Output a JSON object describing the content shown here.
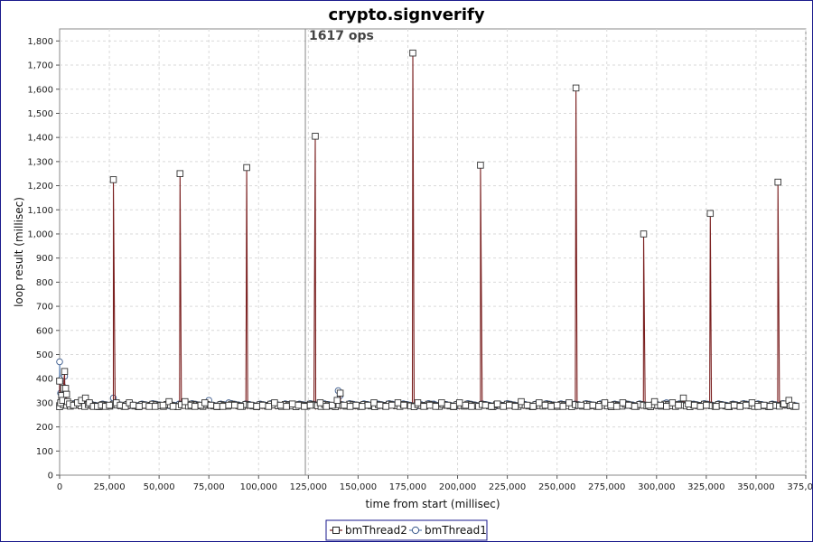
{
  "chart_data": {
    "type": "line",
    "title": "crypto.signverify",
    "xlabel": "time from start (millisec)",
    "ylabel": "loop result (millisec)",
    "xlim": [
      0,
      375000
    ],
    "ylim": [
      0,
      1850
    ],
    "x_ticks": [
      0,
      25000,
      50000,
      75000,
      100000,
      125000,
      150000,
      175000,
      200000,
      225000,
      250000,
      275000,
      300000,
      325000,
      350000,
      375000
    ],
    "x_tick_labels": [
      "0",
      "25,000",
      "50,000",
      "75,000",
      "100,000",
      "125,000",
      "150,000",
      "175,000",
      "200,000",
      "225,000",
      "250,000",
      "275,000",
      "300,000",
      "325,000",
      "350,000",
      "375,000"
    ],
    "y_ticks": [
      0,
      100,
      200,
      300,
      400,
      500,
      600,
      700,
      800,
      900,
      1000,
      1100,
      1200,
      1300,
      1400,
      1500,
      1600,
      1700,
      1800
    ],
    "y_tick_labels": [
      "0",
      "100",
      "200",
      "300",
      "400",
      "500",
      "600",
      "700",
      "800",
      "900",
      "1,000",
      "1,100",
      "1,200",
      "1,300",
      "1,400",
      "1,500",
      "1,600",
      "1,700",
      "1,800"
    ],
    "grid": true,
    "legend_position": "bottom-center",
    "annotation": {
      "text": "1617 ops",
      "x": 123500
    },
    "series": [
      {
        "name": "bmThread2",
        "marker": "square",
        "color": "#7a1f1f",
        "baseline": 285,
        "spikes": [
          [
            27000,
            1225
          ],
          [
            60500,
            1250
          ],
          [
            94000,
            1275
          ],
          [
            128500,
            1405
          ],
          [
            177500,
            1750
          ],
          [
            211500,
            1285
          ],
          [
            259500,
            1605
          ],
          [
            293500,
            1000
          ],
          [
            327000,
            1085
          ],
          [
            361000,
            1215
          ]
        ],
        "points": [
          [
            0,
            390
          ],
          [
            500,
            300
          ],
          [
            1000,
            330
          ],
          [
            1500,
            310
          ],
          [
            2000,
            360
          ],
          [
            2500,
            430
          ],
          [
            3000,
            360
          ],
          [
            3500,
            335
          ],
          [
            4000,
            305
          ],
          [
            5000,
            295
          ],
          [
            7000,
            290
          ],
          [
            9000,
            300
          ],
          [
            11000,
            310
          ],
          [
            13000,
            320
          ],
          [
            15000,
            300
          ],
          [
            17000,
            285
          ],
          [
            19000,
            285
          ],
          [
            21000,
            290
          ],
          [
            23000,
            285
          ],
          [
            25000,
            290
          ],
          [
            28500,
            300
          ],
          [
            30500,
            290
          ],
          [
            33000,
            285
          ],
          [
            35000,
            300
          ],
          [
            37000,
            290
          ],
          [
            40000,
            285
          ],
          [
            43000,
            290
          ],
          [
            45000,
            285
          ],
          [
            48000,
            285
          ],
          [
            52000,
            290
          ],
          [
            55000,
            305
          ],
          [
            57000,
            285
          ],
          [
            63000,
            305
          ],
          [
            66000,
            290
          ],
          [
            68000,
            285
          ],
          [
            71000,
            290
          ],
          [
            73000,
            300
          ],
          [
            76000,
            290
          ],
          [
            79000,
            285
          ],
          [
            82000,
            285
          ],
          [
            85000,
            290
          ],
          [
            88000,
            290
          ],
          [
            91000,
            285
          ],
          [
            96000,
            290
          ],
          [
            99000,
            285
          ],
          [
            102000,
            290
          ],
          [
            105000,
            285
          ],
          [
            108000,
            300
          ],
          [
            111000,
            290
          ],
          [
            114000,
            285
          ],
          [
            117000,
            295
          ],
          [
            120000,
            290
          ],
          [
            123000,
            285
          ],
          [
            126000,
            290
          ],
          [
            131000,
            300
          ],
          [
            134000,
            285
          ],
          [
            137000,
            290
          ],
          [
            139500,
            310
          ],
          [
            141000,
            340
          ],
          [
            143000,
            290
          ],
          [
            146000,
            285
          ],
          [
            149000,
            290
          ],
          [
            152000,
            285
          ],
          [
            155000,
            290
          ],
          [
            158000,
            300
          ],
          [
            161000,
            290
          ],
          [
            164000,
            285
          ],
          [
            167000,
            290
          ],
          [
            170000,
            300
          ],
          [
            173000,
            290
          ],
          [
            180000,
            300
          ],
          [
            183000,
            285
          ],
          [
            186000,
            290
          ],
          [
            189000,
            285
          ],
          [
            192000,
            300
          ],
          [
            195000,
            290
          ],
          [
            198000,
            285
          ],
          [
            201000,
            300
          ],
          [
            204000,
            290
          ],
          [
            207000,
            285
          ],
          [
            214000,
            290
          ],
          [
            217000,
            285
          ],
          [
            220000,
            295
          ],
          [
            223000,
            285
          ],
          [
            226000,
            290
          ],
          [
            229000,
            285
          ],
          [
            232000,
            305
          ],
          [
            235000,
            290
          ],
          [
            238000,
            285
          ],
          [
            241000,
            300
          ],
          [
            244000,
            290
          ],
          [
            247000,
            285
          ],
          [
            250000,
            290
          ],
          [
            253000,
            285
          ],
          [
            256000,
            300
          ],
          [
            262000,
            290
          ],
          [
            265000,
            285
          ],
          [
            268000,
            290
          ],
          [
            271000,
            285
          ],
          [
            274000,
            300
          ],
          [
            277000,
            290
          ],
          [
            280000,
            285
          ],
          [
            283000,
            300
          ],
          [
            286000,
            290
          ],
          [
            289000,
            285
          ],
          [
            296000,
            290
          ],
          [
            299000,
            305
          ],
          [
            302000,
            290
          ],
          [
            305000,
            285
          ],
          [
            308000,
            300
          ],
          [
            311000,
            290
          ],
          [
            313500,
            320
          ],
          [
            316000,
            295
          ],
          [
            319000,
            290
          ],
          [
            322000,
            285
          ],
          [
            325000,
            290
          ],
          [
            330000,
            285
          ],
          [
            333000,
            290
          ],
          [
            336000,
            285
          ],
          [
            339000,
            290
          ],
          [
            342000,
            285
          ],
          [
            345000,
            290
          ],
          [
            348000,
            300
          ],
          [
            351000,
            285
          ],
          [
            354000,
            290
          ],
          [
            357000,
            285
          ],
          [
            364000,
            295
          ],
          [
            366500,
            310
          ],
          [
            368000,
            290
          ],
          [
            370000,
            285
          ]
        ]
      },
      {
        "name": "bmThread1",
        "marker": "circle",
        "color": "#5a7fb0",
        "baseline": 288,
        "points": [
          [
            0,
            470
          ],
          [
            500,
            340
          ],
          [
            1000,
            400
          ],
          [
            1500,
            370
          ],
          [
            2000,
            330
          ],
          [
            2500,
            410
          ],
          [
            3000,
            345
          ],
          [
            4000,
            300
          ],
          [
            6000,
            290
          ],
          [
            8000,
            295
          ],
          [
            12000,
            290
          ],
          [
            15000,
            295
          ],
          [
            18000,
            288
          ],
          [
            22000,
            290
          ],
          [
            27000,
            320
          ],
          [
            30000,
            292
          ],
          [
            35000,
            288
          ],
          [
            40000,
            290
          ],
          [
            45000,
            288
          ],
          [
            50000,
            290
          ],
          [
            55000,
            288
          ],
          [
            60000,
            295
          ],
          [
            65000,
            292
          ],
          [
            70000,
            288
          ],
          [
            75000,
            310
          ],
          [
            80000,
            290
          ],
          [
            85000,
            300
          ],
          [
            90000,
            288
          ],
          [
            95000,
            290
          ],
          [
            100000,
            288
          ],
          [
            105000,
            290
          ],
          [
            110000,
            288
          ],
          [
            115000,
            290
          ],
          [
            120000,
            288
          ],
          [
            125000,
            290
          ],
          [
            130000,
            288
          ],
          [
            135000,
            290
          ],
          [
            140000,
            350
          ],
          [
            141000,
            330
          ],
          [
            145000,
            290
          ],
          [
            150000,
            288
          ],
          [
            155000,
            290
          ],
          [
            160000,
            288
          ],
          [
            165000,
            290
          ],
          [
            170000,
            288
          ],
          [
            175000,
            290
          ],
          [
            180000,
            288
          ],
          [
            185000,
            292
          ],
          [
            188000,
            295
          ],
          [
            190000,
            288
          ],
          [
            195000,
            290
          ],
          [
            200000,
            288
          ],
          [
            205000,
            290
          ],
          [
            210000,
            288
          ],
          [
            215000,
            290
          ],
          [
            220000,
            288
          ],
          [
            225000,
            290
          ],
          [
            230000,
            288
          ],
          [
            235000,
            290
          ],
          [
            240000,
            288
          ],
          [
            245000,
            290
          ],
          [
            250000,
            288
          ],
          [
            255000,
            290
          ],
          [
            260000,
            288
          ],
          [
            265000,
            290
          ],
          [
            270000,
            288
          ],
          [
            275000,
            290
          ],
          [
            280000,
            288
          ],
          [
            285000,
            290
          ],
          [
            290000,
            288
          ],
          [
            295000,
            290
          ],
          [
            300000,
            288
          ],
          [
            305000,
            300
          ],
          [
            310000,
            288
          ],
          [
            315000,
            290
          ],
          [
            320000,
            288
          ],
          [
            325000,
            290
          ],
          [
            330000,
            288
          ],
          [
            335000,
            290
          ],
          [
            340000,
            288
          ],
          [
            345000,
            290
          ],
          [
            350000,
            288
          ],
          [
            355000,
            290
          ],
          [
            360000,
            288
          ],
          [
            365000,
            290
          ],
          [
            370000,
            288
          ]
        ]
      }
    ]
  }
}
